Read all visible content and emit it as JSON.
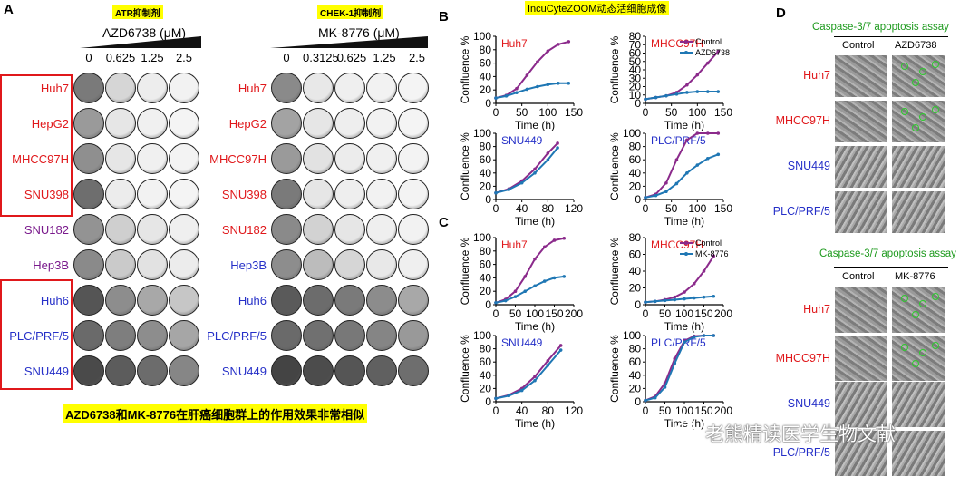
{
  "panel_a": {
    "label": "A",
    "atr_tag": "ATR抑制剂",
    "chek_tag": "CHEK-1抑制剂",
    "left_drug": "AZD6738 (μM)",
    "right_drug": "MK-8776 (μM)",
    "left_concs": [
      "0",
      "0.625",
      "1.25",
      "2.5"
    ],
    "right_concs": [
      "0",
      "0.3125",
      "0.625",
      "1.25",
      "2.5"
    ],
    "left_cells": [
      {
        "name": "Huh7",
        "color": "#e0181b"
      },
      {
        "name": "HepG2",
        "color": "#e0181b"
      },
      {
        "name": "MHCC97H",
        "color": "#e0181b"
      },
      {
        "name": "SNU398",
        "color": "#e0181b"
      },
      {
        "name": "SNU182",
        "color": "#7a1a8c"
      },
      {
        "name": "Hep3B",
        "color": "#7a1a8c"
      },
      {
        "name": "Huh6",
        "color": "#2630c8"
      },
      {
        "name": "PLC/PRF/5",
        "color": "#2630c8"
      },
      {
        "name": "SNU449",
        "color": "#2630c8"
      }
    ],
    "right_cells": [
      {
        "name": "Huh7",
        "color": "#e0181b"
      },
      {
        "name": "HepG2",
        "color": "#e0181b"
      },
      {
        "name": "MHCC97H",
        "color": "#e0181b"
      },
      {
        "name": "SNU398",
        "color": "#e0181b"
      },
      {
        "name": "SNU182",
        "color": "#e0181b"
      },
      {
        "name": "Hep3B",
        "color": "#2630c8"
      },
      {
        "name": "Huh6",
        "color": "#2630c8"
      },
      {
        "name": "PLC/PRF/5",
        "color": "#2630c8"
      },
      {
        "name": "SNU449",
        "color": "#2630c8"
      }
    ],
    "caption": "AZD6738和MK-8776在肝癌细胞群上的作用效果非常相似"
  },
  "panel_b": {
    "label": "B",
    "tag": "IncuCyteZOOM动态活细胞成像"
  },
  "panel_c": {
    "label": "C"
  },
  "panel_d": {
    "label": "D",
    "assay_title": "Caspase-3/7 apoptosis assay",
    "top_cols": [
      "Control",
      "AZD6738"
    ],
    "bottom_cols": [
      "Control",
      "MK-8776"
    ],
    "rows": [
      {
        "name": "Huh7",
        "color": "#e0181b"
      },
      {
        "name": "MHCC97H",
        "color": "#e0181b"
      },
      {
        "name": "SNU449",
        "color": "#2630c8"
      },
      {
        "name": "PLC/PRF/5",
        "color": "#2630c8"
      }
    ]
  },
  "watermark": "老熊精读医学生物文献",
  "chart_data": [
    {
      "type": "line",
      "panel": "B",
      "cell": "Huh7",
      "cell_color": "#e0181b",
      "ylabel": "Confluence %",
      "xlabel": "Time (h)",
      "xlim": [
        0,
        150
      ],
      "ylim": [
        0,
        100
      ],
      "xticks": [
        0,
        50,
        100,
        150
      ],
      "yticks": [
        0,
        20,
        40,
        60,
        80,
        100
      ],
      "series": [
        {
          "name": "Control",
          "color": "#8b2a8b",
          "x": [
            0,
            20,
            40,
            60,
            80,
            100,
            120,
            140
          ],
          "y": [
            8,
            12,
            22,
            42,
            62,
            78,
            88,
            92
          ]
        },
        {
          "name": "AZD6738",
          "color": "#1f77b4",
          "x": [
            0,
            20,
            40,
            60,
            80,
            100,
            120,
            140
          ],
          "y": [
            8,
            11,
            16,
            21,
            25,
            28,
            30,
            30
          ]
        }
      ]
    },
    {
      "type": "line",
      "panel": "B",
      "cell": "MHCC97H",
      "cell_color": "#e0181b",
      "ylabel": "Confluence %",
      "xlabel": "Time (h)",
      "xlim": [
        0,
        150
      ],
      "ylim": [
        0,
        80
      ],
      "xticks": [
        0,
        50,
        100,
        150
      ],
      "yticks": [
        0,
        10,
        20,
        30,
        40,
        50,
        60,
        70,
        80
      ],
      "legend": [
        "Control",
        "AZD6738"
      ],
      "series": [
        {
          "name": "Control",
          "color": "#8b2a8b",
          "x": [
            0,
            20,
            40,
            60,
            80,
            100,
            120,
            140
          ],
          "y": [
            5,
            7,
            9,
            13,
            22,
            34,
            48,
            62
          ]
        },
        {
          "name": "AZD6738",
          "color": "#1f77b4",
          "x": [
            0,
            20,
            40,
            60,
            80,
            100,
            120,
            140
          ],
          "y": [
            5,
            7,
            9,
            11,
            13,
            14,
            14,
            14
          ]
        }
      ]
    },
    {
      "type": "line",
      "panel": "B",
      "cell": "SNU449",
      "cell_color": "#2630c8",
      "ylabel": "Confluence %",
      "xlabel": "Time (h)",
      "xlim": [
        0,
        120
      ],
      "ylim": [
        0,
        100
      ],
      "xticks": [
        0,
        40,
        80,
        120
      ],
      "yticks": [
        0,
        20,
        40,
        60,
        80,
        100
      ],
      "series": [
        {
          "name": "Control",
          "color": "#8b2a8b",
          "x": [
            0,
            20,
            40,
            60,
            80,
            95
          ],
          "y": [
            10,
            16,
            28,
            46,
            70,
            85
          ]
        },
        {
          "name": "AZD6738",
          "color": "#1f77b4",
          "x": [
            0,
            20,
            40,
            60,
            80,
            95
          ],
          "y": [
            10,
            15,
            25,
            40,
            60,
            78
          ]
        }
      ]
    },
    {
      "type": "line",
      "panel": "B",
      "cell": "PLC/PRF/5",
      "cell_color": "#2630c8",
      "ylabel": "Confluence %",
      "xlabel": "Time (h)",
      "xlim": [
        0,
        150
      ],
      "ylim": [
        0,
        100
      ],
      "xticks": [
        0,
        50,
        100,
        150
      ],
      "yticks": [
        0,
        20,
        40,
        60,
        80,
        100
      ],
      "series": [
        {
          "name": "Control",
          "color": "#8b2a8b",
          "x": [
            0,
            20,
            40,
            60,
            80,
            100,
            120,
            140
          ],
          "y": [
            3,
            8,
            25,
            60,
            90,
            100,
            100,
            100
          ]
        },
        {
          "name": "AZD6738",
          "color": "#1f77b4",
          "x": [
            0,
            20,
            40,
            60,
            80,
            100,
            120,
            140
          ],
          "y": [
            3,
            6,
            12,
            24,
            40,
            52,
            62,
            68
          ]
        }
      ]
    },
    {
      "type": "line",
      "panel": "C",
      "cell": "Huh7",
      "cell_color": "#e0181b",
      "ylabel": "Confluence %",
      "xlabel": "Time (h)",
      "xlim": [
        0,
        200
      ],
      "ylim": [
        0,
        100
      ],
      "xticks": [
        0,
        50,
        100,
        150,
        200
      ],
      "yticks": [
        0,
        20,
        40,
        60,
        80,
        100
      ],
      "series": [
        {
          "name": "Control",
          "color": "#8b2a8b",
          "x": [
            0,
            25,
            50,
            75,
            100,
            125,
            150,
            175
          ],
          "y": [
            3,
            8,
            20,
            42,
            68,
            86,
            96,
            99
          ]
        },
        {
          "name": "MK-8776",
          "color": "#1f77b4",
          "x": [
            0,
            25,
            50,
            75,
            100,
            125,
            150,
            175
          ],
          "y": [
            3,
            6,
            12,
            20,
            28,
            35,
            40,
            42
          ]
        }
      ]
    },
    {
      "type": "line",
      "panel": "C",
      "cell": "MHCC97H",
      "cell_color": "#e0181b",
      "ylabel": "Confluence %",
      "xlabel": "Time (h)",
      "xlim": [
        0,
        200
      ],
      "ylim": [
        0,
        80
      ],
      "xticks": [
        0,
        50,
        100,
        150,
        200
      ],
      "yticks": [
        0,
        20,
        40,
        60,
        80
      ],
      "legend": [
        "Control",
        "MK-8776"
      ],
      "series": [
        {
          "name": "Control",
          "color": "#8b2a8b",
          "x": [
            0,
            25,
            50,
            75,
            100,
            125,
            150,
            175
          ],
          "y": [
            3,
            4,
            6,
            9,
            15,
            25,
            40,
            58
          ]
        },
        {
          "name": "MK-8776",
          "color": "#1f77b4",
          "x": [
            0,
            25,
            50,
            75,
            100,
            125,
            150,
            175
          ],
          "y": [
            3,
            4,
            5,
            6,
            7,
            8,
            9,
            10
          ]
        }
      ]
    },
    {
      "type": "line",
      "panel": "C",
      "cell": "SNU449",
      "cell_color": "#2630c8",
      "ylabel": "Confluence %",
      "xlabel": "Time (h)",
      "xlim": [
        0,
        120
      ],
      "ylim": [
        0,
        100
      ],
      "xticks": [
        0,
        40,
        80,
        120
      ],
      "yticks": [
        0,
        20,
        40,
        60,
        80,
        100
      ],
      "series": [
        {
          "name": "Control",
          "color": "#8b2a8b",
          "x": [
            0,
            20,
            40,
            60,
            80,
            100
          ],
          "y": [
            5,
            10,
            20,
            38,
            62,
            85
          ]
        },
        {
          "name": "MK-8776",
          "color": "#1f77b4",
          "x": [
            0,
            20,
            40,
            60,
            80,
            100
          ],
          "y": [
            5,
            9,
            17,
            32,
            55,
            78
          ]
        }
      ]
    },
    {
      "type": "line",
      "panel": "C",
      "cell": "PLC/PRF/5",
      "cell_color": "#2630c8",
      "ylabel": "Confluence %",
      "xlabel": "Time (h)",
      "xlim": [
        0,
        200
      ],
      "ylim": [
        0,
        100
      ],
      "xticks": [
        0,
        50,
        100,
        150,
        200
      ],
      "yticks": [
        0,
        20,
        40,
        60,
        80,
        100
      ],
      "series": [
        {
          "name": "Control",
          "color": "#8b2a8b",
          "x": [
            0,
            25,
            50,
            75,
            100,
            125,
            150,
            175
          ],
          "y": [
            2,
            8,
            28,
            65,
            92,
            99,
            100,
            100
          ]
        },
        {
          "name": "MK-8776",
          "color": "#1f77b4",
          "x": [
            0,
            25,
            50,
            75,
            100,
            125,
            150,
            175
          ],
          "y": [
            2,
            6,
            22,
            58,
            90,
            98,
            100,
            100
          ]
        }
      ]
    }
  ]
}
